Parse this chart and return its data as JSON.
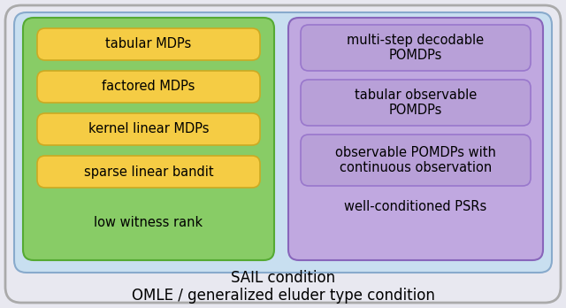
{
  "outer_bg": "#e8e8f0",
  "outer_edge": "#aaaaaa",
  "sail_bg": "#c8dff0",
  "sail_edge": "#88aacc",
  "left_bg": "#88cc66",
  "left_edge": "#55aa33",
  "right_bg": "#c0a8e0",
  "right_edge": "#8866bb",
  "yellow_bg": "#f5cc44",
  "yellow_edge": "#ccaa22",
  "purple_bg": "#b8a0d8",
  "purple_edge": "#9977cc",
  "outer_label": "OMLE / generalized eluder type condition",
  "sail_label": "SAIL condition",
  "left_items_boxed": [
    "tabular MDPs",
    "factored MDPs",
    "kernel linear MDPs",
    "sparse linear bandit"
  ],
  "left_items_plain": [
    "low witness rank"
  ],
  "right_items_boxed": [
    "multi-step decodable\nPOMDPs",
    "tabular observable\nPOMDPs",
    "observable POMDPs with\ncontinuous observation"
  ],
  "right_items_plain": [
    "well-conditioned PSRs"
  ],
  "font_size": 10.5,
  "label_font_size": 12
}
